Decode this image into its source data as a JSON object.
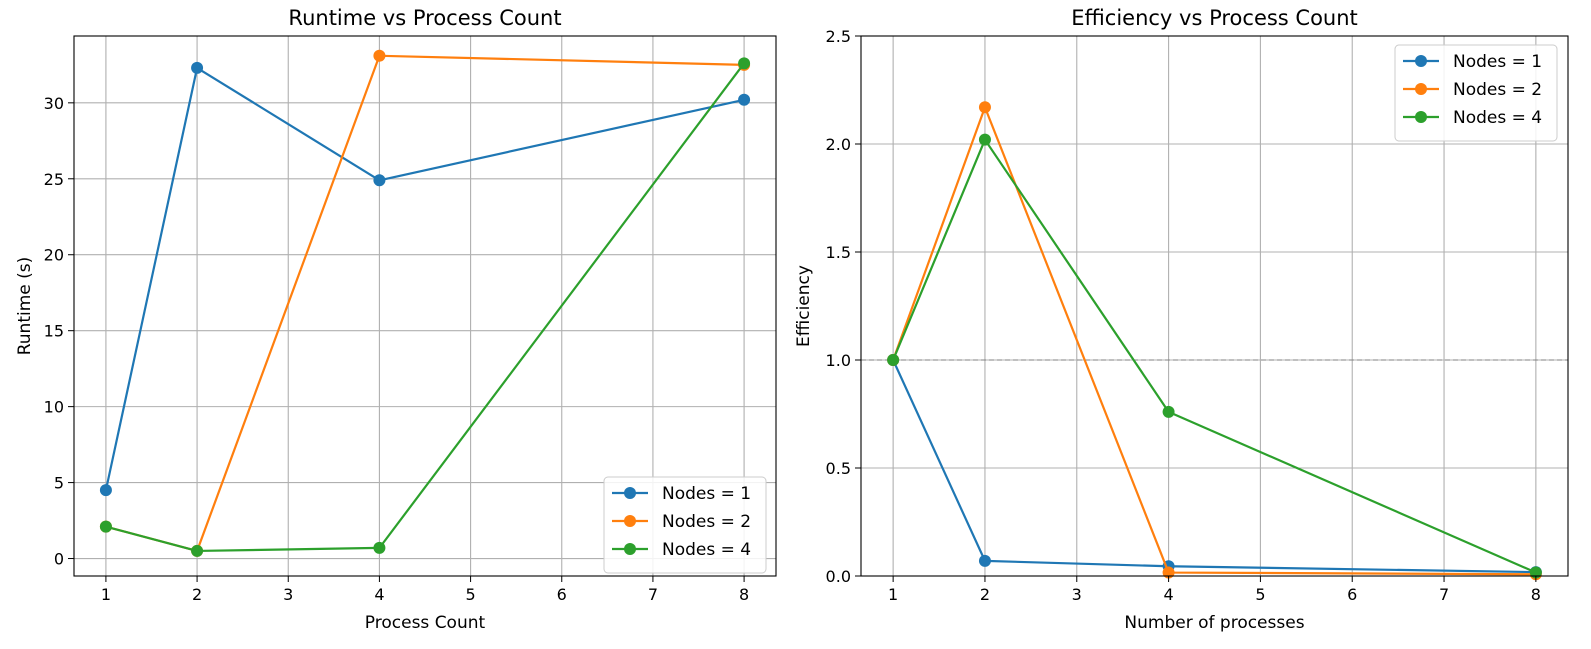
{
  "chart_data": [
    {
      "type": "line",
      "title": "Runtime vs Process Count",
      "xlabel": "Process Count",
      "ylabel": "Runtime (s)",
      "xlim": [
        0.65,
        8.35
      ],
      "ylim": [
        -1.15,
        34.4
      ],
      "xticks": [
        1,
        2,
        3,
        4,
        5,
        6,
        7,
        8
      ],
      "yticks": [
        0,
        5,
        10,
        15,
        20,
        25,
        30
      ],
      "grid": true,
      "legend_position": "lower-right",
      "x": [
        1,
        2,
        4,
        8
      ],
      "series": [
        {
          "name": "Nodes = 1",
          "color": "#1f77b4",
          "values": [
            4.5,
            32.3,
            24.9,
            30.2
          ]
        },
        {
          "name": "Nodes = 2",
          "color": "#ff7f0e",
          "values": [
            2.1,
            0.5,
            33.1,
            32.5
          ]
        },
        {
          "name": "Nodes = 4",
          "color": "#2ca02c",
          "values": [
            2.1,
            0.5,
            0.7,
            32.6
          ]
        }
      ]
    },
    {
      "type": "line",
      "title": "Efficiency vs Process Count",
      "xlabel": "Number of processes",
      "ylabel": "Efficiency",
      "xlim": [
        0.65,
        8.35
      ],
      "ylim": [
        0,
        2.5
      ],
      "xticks": [
        1,
        2,
        3,
        4,
        5,
        6,
        7,
        8
      ],
      "yticks": [
        0.0,
        0.5,
        1.0,
        1.5,
        2.0,
        2.5
      ],
      "grid": true,
      "reference_line": {
        "y": 1.0,
        "style": "dashed"
      },
      "legend_position": "upper-right",
      "x": [
        1,
        2,
        4,
        8
      ],
      "series": [
        {
          "name": "Nodes = 1",
          "color": "#1f77b4",
          "values": [
            1.0,
            0.07,
            0.045,
            0.018
          ]
        },
        {
          "name": "Nodes = 2",
          "color": "#ff7f0e",
          "values": [
            1.0,
            2.17,
            0.016,
            0.008
          ]
        },
        {
          "name": "Nodes = 4",
          "color": "#2ca02c",
          "values": [
            1.0,
            2.02,
            0.76,
            0.016
          ]
        }
      ]
    }
  ]
}
